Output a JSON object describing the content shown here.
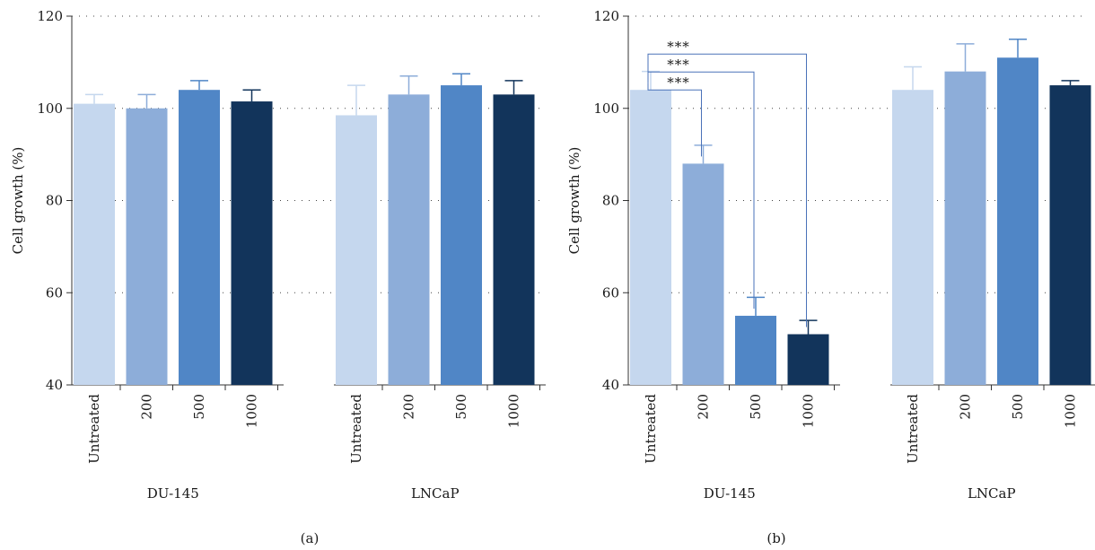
{
  "chart_data": [
    {
      "type": "bar",
      "panel_label": "(a)",
      "ylabel": "Cell growth (%)",
      "ylim": [
        40,
        120
      ],
      "yticks": [
        "40",
        "60",
        "80",
        "100",
        "120"
      ],
      "grid": "dotted horizontal",
      "groups": [
        {
          "name": "DU-145",
          "categories": [
            "Untreated",
            "200",
            "500",
            "1000"
          ],
          "values": [
            101,
            100,
            104,
            101.5
          ],
          "errors": [
            2,
            3,
            2,
            2.5
          ]
        },
        {
          "name": "LNCaP",
          "categories": [
            "Untreated",
            "200",
            "500",
            "1000"
          ],
          "values": [
            98.5,
            103,
            105,
            103
          ],
          "errors": [
            6.5,
            4,
            2.5,
            3
          ]
        }
      ],
      "bar_colors": [
        "#c5d7ee",
        "#8dadd9",
        "#5086c6",
        "#12345b"
      ],
      "significance": []
    },
    {
      "type": "bar",
      "panel_label": "(b)",
      "ylabel": "Cell growth (%)",
      "ylim": [
        40,
        120
      ],
      "yticks": [
        "40",
        "60",
        "80",
        "100",
        "120"
      ],
      "grid": "dotted horizontal",
      "groups": [
        {
          "name": "DU-145",
          "categories": [
            "Untreated",
            "200",
            "500",
            "1000"
          ],
          "values": [
            104,
            88,
            55,
            51
          ],
          "errors": [
            4,
            4,
            4,
            3
          ]
        },
        {
          "name": "LNCaP",
          "categories": [
            "Untreated",
            "200",
            "500",
            "1000"
          ],
          "values": [
            104,
            108,
            111,
            105
          ],
          "errors": [
            5,
            6,
            4,
            1
          ]
        }
      ],
      "bar_colors": [
        "#c5d7ee",
        "#8dadd9",
        "#5086c6",
        "#12345b"
      ],
      "significance": [
        {
          "group": 0,
          "from": 0,
          "to": 3,
          "label": "***"
        },
        {
          "group": 0,
          "from": 0,
          "to": 2,
          "label": "***"
        },
        {
          "group": 0,
          "from": 0,
          "to": 1,
          "label": "***"
        }
      ]
    }
  ]
}
